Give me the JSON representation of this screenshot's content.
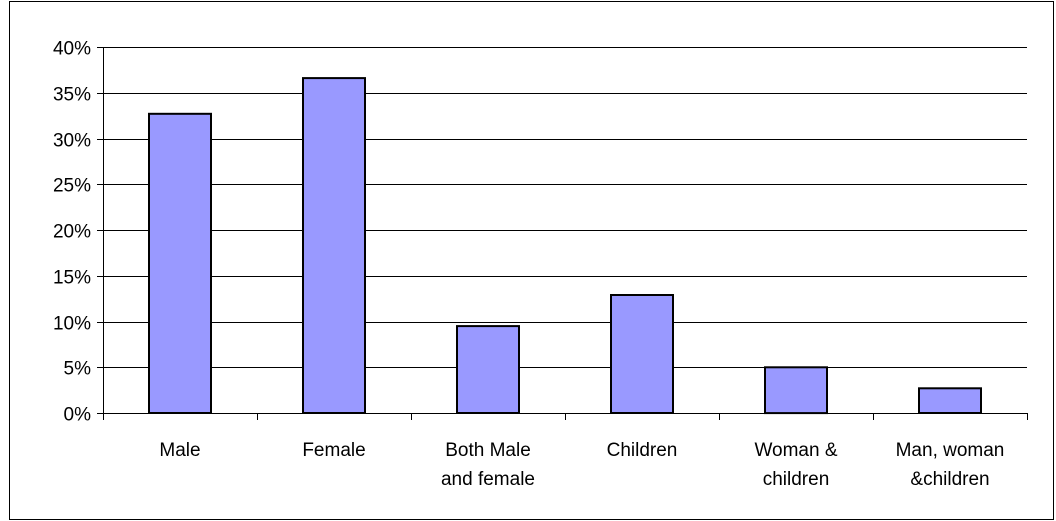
{
  "chart_data": {
    "type": "bar",
    "title": "",
    "xlabel": "",
    "ylabel": "",
    "categories": [
      [
        "Male"
      ],
      [
        "Female"
      ],
      [
        "Both Male",
        "and female"
      ],
      [
        "Children"
      ],
      [
        "Woman &",
        "children"
      ],
      [
        "Man, woman",
        "&children"
      ]
    ],
    "values": [
      0.327,
      0.366,
      0.095,
      0.129,
      0.05,
      0.027
    ],
    "ylim": [
      0,
      0.4
    ],
    "yticks": [
      0,
      0.05,
      0.1,
      0.15,
      0.2,
      0.25,
      0.3,
      0.35,
      0.4
    ],
    "ytick_labels": [
      "0%",
      "5%",
      "10%",
      "15%",
      "20%",
      "25%",
      "30%",
      "35%",
      "40%"
    ],
    "grid": true,
    "legend": "none",
    "bar_color": "#9999ff",
    "bar_edge_color": "#000000"
  }
}
